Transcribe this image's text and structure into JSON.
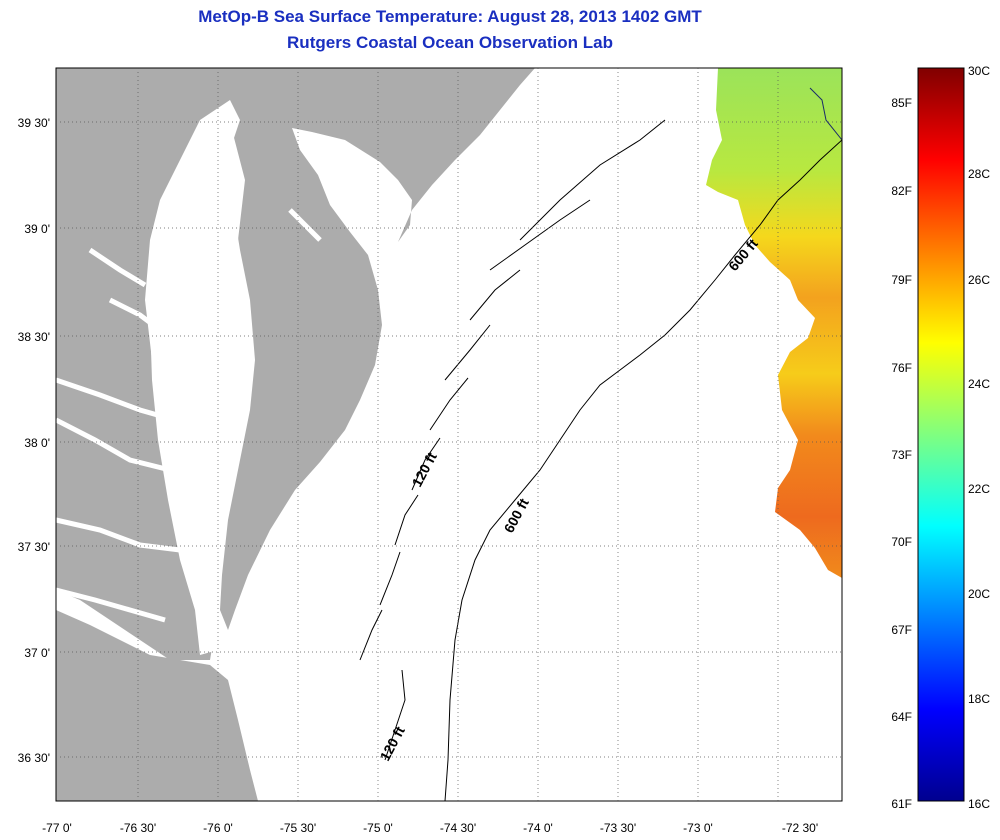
{
  "title": "MetOp-B Sea Surface Temperature:  August 28, 2013 1402 GMT",
  "subtitle": "Rutgers Coastal Ocean Observation Lab",
  "map": {
    "lat_labels": [
      "39 30'",
      "39 0'",
      "38 30'",
      "38 0'",
      "37 30'",
      "37 0'",
      "36 30'"
    ],
    "lon_labels": [
      "-77 0'",
      "-76 30'",
      "-76 0'",
      "-75 30'",
      "-75 0'",
      "-74 30'",
      "-74 0'",
      "-73 30'",
      "-73 0'",
      "-72 30'"
    ],
    "contours": {
      "c120_upper": "120 ft",
      "c120_lower": "120 ft",
      "c600_lower": "600 ft",
      "c600_upper": "600 ft"
    },
    "colors": {
      "land": "#acacac",
      "water": "#ffffff",
      "title": "#1a2fc0"
    }
  },
  "colorbar": {
    "range_c": [
      16,
      30
    ],
    "range_f": [
      61,
      86
    ],
    "f_labels": [
      "85F",
      "82F",
      "79F",
      "76F",
      "73F",
      "70F",
      "67F",
      "64F",
      "61F"
    ],
    "c_labels": [
      "30C",
      "28C",
      "26C",
      "24C",
      "22C",
      "20C",
      "18C",
      "16C"
    ],
    "colormap": "jet"
  }
}
